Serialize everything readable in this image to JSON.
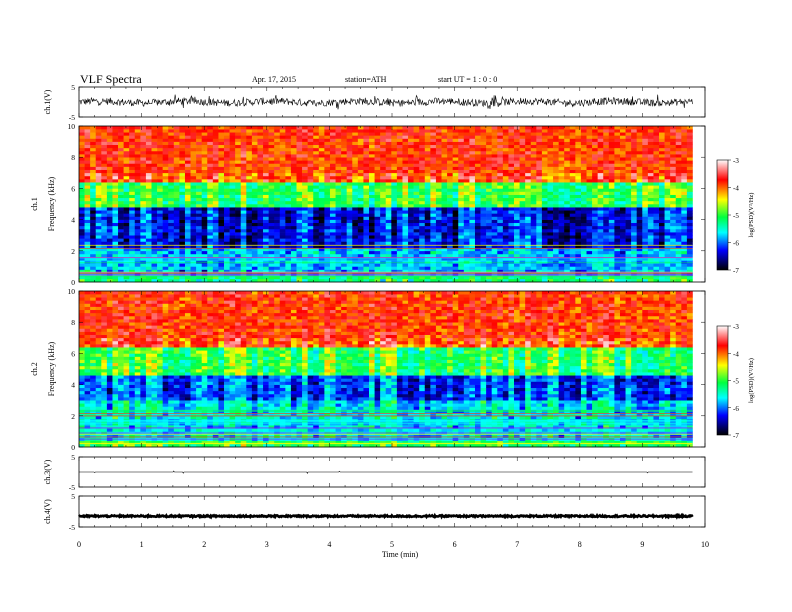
{
  "header": {
    "title": "VLF  Spectra",
    "date": "Apr. 17, 2015",
    "station": "station=ATH",
    "start": "start  UT  =   1 : 0  : 0"
  },
  "colorbar": {
    "label": "log(PSD)(V²/Hz)",
    "ticks": [
      "-3",
      "-4",
      "-5",
      "-6",
      "-7"
    ],
    "stops": [
      "#ffffff",
      "#ff0000",
      "#ffff00",
      "#00ff40",
      "#00ffff",
      "#0000ff",
      "#000000"
    ]
  },
  "chart_data": [
    {
      "type": "line",
      "panel": "ch1-waveform",
      "ylabel": "ch.1(V)",
      "ylim": [
        -5,
        5
      ],
      "yticks": [
        "5",
        "-5"
      ],
      "xlim": [
        0,
        10
      ],
      "trace": "noisy broadband waveform, amplitude about ±1.5 V around 0 with spikes to about ±2.5 V, ending at about 9.8 min"
    },
    {
      "type": "heatmap",
      "panel": "ch1-spectrogram",
      "ylabel": "ch.1\nFrequency  (kHz)",
      "ylim": [
        0,
        10
      ],
      "yticks": [
        "0",
        "2",
        "4",
        "6",
        "8",
        "10"
      ],
      "xlim": [
        0,
        10
      ],
      "clim": [
        -7,
        -3
      ],
      "bands": [
        {
          "freq_khz": [
            0,
            0.5
          ],
          "log_psd": -5.2
        },
        {
          "freq_khz": [
            0.5,
            2.2
          ],
          "log_psd": -5.8
        },
        {
          "freq_khz": [
            2.2,
            4.8
          ],
          "log_psd": -6.3
        },
        {
          "freq_khz": [
            4.8,
            6.5
          ],
          "log_psd": -5.0
        },
        {
          "freq_khz": [
            6.5,
            10
          ],
          "log_psd": -3.8
        }
      ]
    },
    {
      "type": "heatmap",
      "panel": "ch2-spectrogram",
      "ylabel": "ch.2\nFrequency  (kHz)",
      "ylim": [
        0,
        10
      ],
      "yticks": [
        "0",
        "2",
        "4",
        "6",
        "8",
        "10"
      ],
      "xlim": [
        0,
        10
      ],
      "clim": [
        -7,
        -3
      ],
      "bands": [
        {
          "freq_khz": [
            0,
            0.5
          ],
          "log_psd": -5.0
        },
        {
          "freq_khz": [
            0.5,
            3.0
          ],
          "log_psd": -5.6
        },
        {
          "freq_khz": [
            3.0,
            4.6
          ],
          "log_psd": -6.1
        },
        {
          "freq_khz": [
            4.6,
            6.5
          ],
          "log_psd": -5.0
        },
        {
          "freq_khz": [
            6.5,
            10
          ],
          "log_psd": -3.8
        }
      ]
    },
    {
      "type": "line",
      "panel": "ch3-waveform",
      "ylabel": "ch.3(V)",
      "ylim": [
        -5,
        5
      ],
      "yticks": [
        "5",
        "-5"
      ],
      "xlim": [
        0,
        10
      ],
      "trace": "flat near 0 V with sparse small spikes"
    },
    {
      "type": "line",
      "panel": "ch4-waveform",
      "ylabel": "ch.4(V)",
      "ylim": [
        -5,
        5
      ],
      "yticks": [
        "5",
        "-5"
      ],
      "xlim": [
        0,
        10
      ],
      "trace": "thick constant band at about -1.5 V"
    }
  ],
  "xaxis": {
    "label": "Time  (min)",
    "ticks": [
      "0",
      "1",
      "2",
      "3",
      "4",
      "5",
      "6",
      "7",
      "8",
      "9",
      "10"
    ],
    "data_end_min": 9.8
  }
}
